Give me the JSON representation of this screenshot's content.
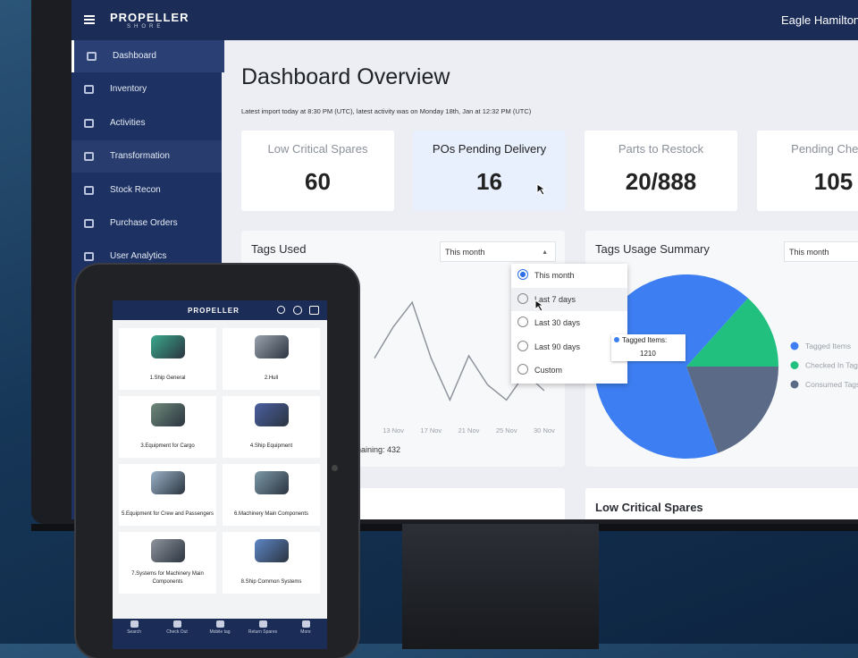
{
  "header": {
    "brand": "PROPELLER",
    "brand_sub": "SHORE",
    "user": "Eagle Hamilton"
  },
  "sidebar": [
    "Dashboard",
    "Inventory",
    "Activities",
    "Transformation",
    "Stock Recon",
    "Purchase Orders",
    "User Analytics"
  ],
  "page": {
    "title": "Dashboard Overview",
    "subtitle": "Latest import today at 8:30 PM (UTC), latest activity was on Monday 18th, Jan at 12:32 PM (UTC)"
  },
  "cards": [
    {
      "label": "Low Critical Spares",
      "value": "60"
    },
    {
      "label": "POs Pending Delivery",
      "value": "16"
    },
    {
      "label": "Parts to Restock",
      "value": "20/888"
    },
    {
      "label": "Pending Checks",
      "value": "105"
    }
  ],
  "tags_used": {
    "title": "Tags Used",
    "dropdown": "This month",
    "options": [
      "This month",
      "Last 7 days",
      "Last 30 days",
      "Last 90 days",
      "Custom"
    ],
    "chart_data": {
      "type": "line",
      "categories": [
        null,
        "13 Nov",
        null,
        "17 Nov",
        null,
        "21 Nov",
        null,
        "25 Nov",
        null,
        "30 Nov"
      ],
      "values": [
        38,
        65,
        86,
        38,
        2,
        40,
        15,
        2,
        25,
        10
      ],
      "ylim": [
        0,
        100
      ],
      "color": "#8f949c"
    },
    "remaining_label": "Remaining:",
    "remaining_value": 432
  },
  "tags_summary": {
    "title": "Tags Usage Summary",
    "dropdown": "This month",
    "tooltip_label": "Tagged Items:",
    "chart_data": {
      "type": "pie",
      "categories": [
        "Tagged Items",
        "Checked In Tags",
        "Consumed Tags"
      ],
      "values": [
        1210,
        240,
        350
      ],
      "colors": [
        "#3d7ff2",
        "#21c07f",
        "#5b6a86"
      ]
    }
  },
  "bottom_titles": [
    "ry",
    "Low Critical Spares"
  ],
  "tablet": {
    "brand": "PROPELLER",
    "tiles": [
      "1.Ship General",
      "2.Hull",
      "3.Equipment for Cargo",
      "4.Ship Equipment",
      "5.Equipment for Crew and Passengers",
      "6.Machinery Main Components",
      "7.Systems for Machinery Main Components",
      "8.Ship Common Systems"
    ],
    "nav": [
      "Search",
      "Check Out",
      "Mobile tag",
      "Return Spares",
      "More"
    ]
  }
}
